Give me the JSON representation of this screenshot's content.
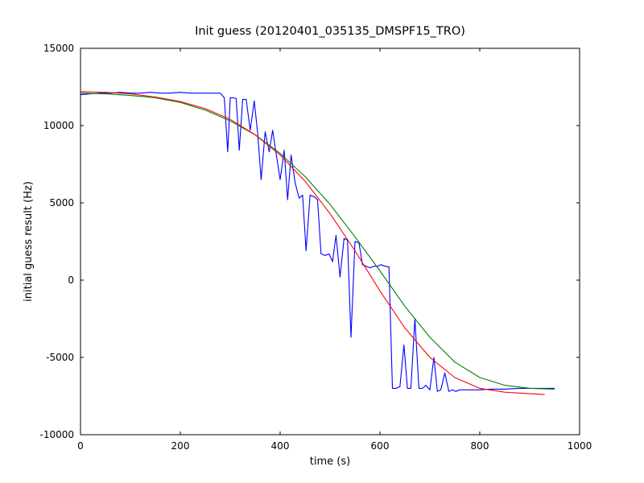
{
  "figure": {
    "background_color": "#ffffff",
    "frame_color": "#000000"
  },
  "chart_data": {
    "type": "line",
    "title": "Init guess (20120401_035135_DMSPF15_TRO)",
    "xlabel": "time (s)",
    "ylabel": "initial guess result (Hz)",
    "xlim": [
      0,
      1000
    ],
    "ylim": [
      -10000,
      15000
    ],
    "xticks": [
      0,
      200,
      400,
      600,
      800,
      1000
    ],
    "yticks": [
      15000,
      10000,
      5000,
      0,
      -5000,
      -10000
    ],
    "grid": false,
    "legend": "none",
    "series": [
      {
        "name": "blue-noisy-data-line",
        "color": "#0000ff",
        "x": [
          0,
          20,
          40,
          60,
          80,
          100,
          120,
          140,
          160,
          180,
          200,
          220,
          240,
          260,
          280,
          288,
          295,
          300,
          305,
          312,
          318,
          325,
          332,
          340,
          348,
          355,
          362,
          370,
          378,
          385,
          392,
          400,
          408,
          415,
          422,
          430,
          438,
          445,
          452,
          460,
          468,
          475,
          482,
          490,
          498,
          505,
          512,
          520,
          528,
          535,
          542,
          550,
          558,
          565,
          572,
          580,
          588,
          595,
          602,
          610,
          618,
          625,
          632,
          640,
          648,
          655,
          662,
          670,
          678,
          685,
          692,
          700,
          708,
          715,
          722,
          730,
          738,
          745,
          752,
          760,
          770,
          780,
          800,
          820,
          850,
          880,
          910,
          940,
          950
        ],
        "y": [
          12000,
          12050,
          12100,
          12100,
          12150,
          12100,
          12100,
          12150,
          12100,
          12100,
          12150,
          12100,
          12100,
          12100,
          12100,
          11800,
          8300,
          11800,
          11800,
          11750,
          8400,
          11700,
          11700,
          9700,
          11600,
          9500,
          6500,
          9600,
          8300,
          9700,
          8200,
          6500,
          8400,
          5200,
          8100,
          6300,
          5300,
          5500,
          1900,
          5500,
          5400,
          5200,
          1700,
          1600,
          1700,
          1200,
          2900,
          200,
          2700,
          2600,
          -3700,
          2500,
          2400,
          1000,
          900,
          800,
          900,
          900,
          1000,
          900,
          850,
          -7000,
          -7000,
          -6900,
          -4200,
          -7000,
          -7000,
          -2500,
          -7000,
          -7000,
          -6800,
          -7100,
          -5000,
          -7200,
          -7100,
          -6000,
          -7200,
          -7100,
          -7200,
          -7100,
          -7100,
          -7100,
          -7100,
          -7050,
          -7050,
          -7000,
          -7000,
          -7000,
          -7000
        ]
      },
      {
        "name": "green-smooth-fit-curve",
        "color": "#008000",
        "x": [
          0,
          50,
          100,
          150,
          200,
          250,
          300,
          350,
          400,
          450,
          500,
          550,
          600,
          650,
          700,
          750,
          800,
          850,
          900,
          950
        ],
        "y": [
          12100,
          12050,
          11950,
          11800,
          11500,
          11000,
          10300,
          9400,
          8200,
          6700,
          4900,
          2800,
          600,
          -1700,
          -3700,
          -5300,
          -6300,
          -6800,
          -7000,
          -7050
        ]
      },
      {
        "name": "red-smooth-fit-curve",
        "color": "#ff0000",
        "x": [
          0,
          50,
          100,
          150,
          200,
          250,
          300,
          350,
          400,
          450,
          500,
          550,
          600,
          650,
          700,
          750,
          800,
          850,
          900,
          930
        ],
        "y": [
          12200,
          12150,
          12050,
          11850,
          11550,
          11100,
          10400,
          9400,
          8100,
          6400,
          4300,
          1900,
          -700,
          -3100,
          -5000,
          -6300,
          -7000,
          -7250,
          -7350,
          -7400
        ]
      }
    ]
  }
}
